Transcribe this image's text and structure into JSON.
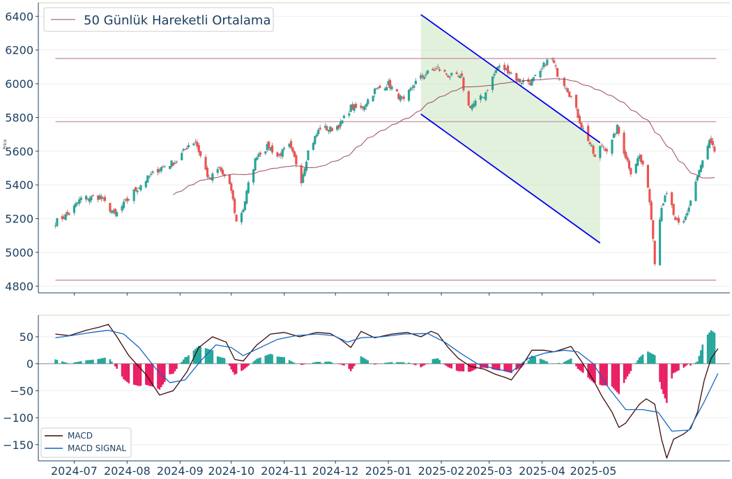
{
  "chart_data": [
    {
      "type": "candlestick",
      "ylabel": "Price",
      "ylim": [
        4760,
        6480
      ],
      "yticks": [
        4800,
        5000,
        5200,
        5400,
        5600,
        5800,
        6000,
        6200,
        6400
      ],
      "legend": {
        "label": "50 Günlük Hareketli Ortalama",
        "placement": "top-left"
      },
      "horizontal_levels": [
        6150,
        5775,
        4835
      ],
      "trend_channel": {
        "upper": [
          [
            "2025-01-20",
            6410
          ],
          [
            "2025-05-05",
            5650
          ]
        ],
        "lower": [
          [
            "2025-01-20",
            5820
          ],
          [
            "2025-05-05",
            5055
          ]
        ]
      },
      "colors": {
        "up": "#26a69a",
        "down": "#ef5350",
        "ma": "#9b4a5a",
        "channel": "#0000ee",
        "channel_fill": "#cfe8c5",
        "levels": "#c9a4ac"
      },
      "close_anchors": [
        [
          "2024-06-20",
          5180
        ],
        [
          "2024-06-28",
          5230
        ],
        [
          "2024-07-05",
          5320
        ],
        [
          "2024-07-16",
          5330
        ],
        [
          "2024-07-25",
          5220
        ],
        [
          "2024-08-05",
          5360
        ],
        [
          "2024-08-12",
          5430
        ],
        [
          "2024-08-20",
          5500
        ],
        [
          "2024-08-30",
          5540
        ],
        [
          "2024-09-06",
          5640
        ],
        [
          "2024-09-10",
          5660
        ],
        [
          "2024-09-13",
          5570
        ],
        [
          "2024-09-18",
          5430
        ],
        [
          "2024-09-24",
          5500
        ],
        [
          "2024-10-01",
          5370
        ],
        [
          "2024-10-04",
          5180
        ],
        [
          "2024-10-08",
          5260
        ],
        [
          "2024-10-11",
          5400
        ],
        [
          "2024-10-16",
          5580
        ],
        [
          "2024-10-23",
          5630
        ],
        [
          "2024-10-28",
          5570
        ],
        [
          "2024-11-04",
          5630
        ],
        [
          "2024-11-08",
          5530
        ],
        [
          "2024-11-11",
          5430
        ],
        [
          "2024-11-15",
          5600
        ],
        [
          "2024-11-22",
          5740
        ],
        [
          "2024-11-28",
          5730
        ],
        [
          "2024-12-04",
          5760
        ],
        [
          "2024-12-10",
          5860
        ],
        [
          "2024-12-16",
          5850
        ],
        [
          "2024-12-24",
          5960
        ],
        [
          "2025-01-01",
          6000
        ],
        [
          "2025-01-10",
          5890
        ],
        [
          "2025-01-16",
          6000
        ],
        [
          "2025-01-23",
          6060
        ],
        [
          "2025-01-30",
          6090
        ],
        [
          "2025-02-05",
          6050
        ],
        [
          "2025-02-13",
          6030
        ],
        [
          "2025-02-16",
          5860
        ],
        [
          "2025-02-20",
          5880
        ],
        [
          "2025-02-26",
          5930
        ],
        [
          "2025-03-06",
          6100
        ],
        [
          "2025-03-12",
          6080
        ],
        [
          "2025-03-18",
          6020
        ],
        [
          "2025-03-25",
          6010
        ],
        [
          "2025-03-31",
          6060
        ],
        [
          "2025-04-03",
          6130
        ],
        [
          "2025-04-07",
          6140
        ],
        [
          "2025-04-10",
          6060
        ],
        [
          "2025-04-15",
          5990
        ],
        [
          "2025-04-20",
          5870
        ],
        [
          "2025-04-24",
          5750
        ],
        [
          "2025-04-28",
          5670
        ],
        [
          "2025-05-02",
          5560
        ],
        [
          "2025-05-06",
          5640
        ],
        [
          "2025-05-10",
          5600
        ],
        [
          "2025-05-15",
          5740
        ],
        [
          "2025-05-19",
          5600
        ],
        [
          "2025-05-23",
          5480
        ],
        [
          "2025-05-28",
          5570
        ],
        [
          "2025-06-02",
          5400
        ],
        [
          "2025-06-05",
          5100
        ],
        [
          "2025-06-06",
          4950
        ],
        [
          "2025-06-10",
          5280
        ],
        [
          "2025-06-14",
          5360
        ],
        [
          "2025-06-18",
          5180
        ],
        [
          "2025-06-22",
          5150
        ],
        [
          "2025-06-26",
          5270
        ],
        [
          "2025-06-30",
          5420
        ],
        [
          "2025-07-04",
          5540
        ],
        [
          "2025-07-08",
          5650
        ],
        [
          "2025-07-11",
          5600
        ]
      ]
    },
    {
      "type": "line",
      "ylim": [
        -180,
        90
      ],
      "yticks": [
        50,
        0,
        -50,
        -100,
        -150
      ],
      "xlim": [
        "2024-06-10",
        "2025-07-20"
      ],
      "xticks": [
        "2024-07",
        "2024-08",
        "2024-09",
        "2024-10",
        "2024-11",
        "2024-12",
        "2025-01",
        "2025-02",
        "2025-03",
        "2025-04",
        "2025-05"
      ],
      "legend_placement": "bottom-left",
      "colors": {
        "hist_pos": "#26a69a",
        "hist_neg": "#e91e63"
      },
      "series": [
        {
          "name": "MACD",
          "color": "#3a0a0a",
          "points": [
            [
              "2024-06-20",
              55
            ],
            [
              "2024-06-28",
              52
            ],
            [
              "2024-07-08",
              62
            ],
            [
              "2024-07-16",
              68
            ],
            [
              "2024-07-21",
              73
            ],
            [
              "2024-07-26",
              50
            ],
            [
              "2024-08-02",
              15
            ],
            [
              "2024-08-12",
              -20
            ],
            [
              "2024-08-20",
              -58
            ],
            [
              "2024-08-28",
              -50
            ],
            [
              "2024-09-05",
              -15
            ],
            [
              "2024-09-12",
              30
            ],
            [
              "2024-09-20",
              50
            ],
            [
              "2024-09-28",
              40
            ],
            [
              "2024-10-03",
              8
            ],
            [
              "2024-10-08",
              5
            ],
            [
              "2024-10-16",
              35
            ],
            [
              "2024-10-24",
              55
            ],
            [
              "2024-11-01",
              58
            ],
            [
              "2024-11-10",
              50
            ],
            [
              "2024-11-20",
              58
            ],
            [
              "2024-11-28",
              56
            ],
            [
              "2024-12-04",
              45
            ],
            [
              "2024-12-10",
              30
            ],
            [
              "2024-12-16",
              60
            ],
            [
              "2024-12-24",
              48
            ],
            [
              "2025-01-03",
              55
            ],
            [
              "2025-01-12",
              58
            ],
            [
              "2025-01-20",
              50
            ],
            [
              "2025-01-26",
              60
            ],
            [
              "2025-01-30",
              55
            ],
            [
              "2025-02-05",
              30
            ],
            [
              "2025-02-11",
              10
            ],
            [
              "2025-02-18",
              -5
            ],
            [
              "2025-02-26",
              -10
            ],
            [
              "2025-03-05",
              -20
            ],
            [
              "2025-03-10",
              -25
            ],
            [
              "2025-03-14",
              -30
            ],
            [
              "2025-03-20",
              -5
            ],
            [
              "2025-03-26",
              25
            ],
            [
              "2025-04-02",
              25
            ],
            [
              "2025-04-08",
              22
            ],
            [
              "2025-04-14",
              28
            ],
            [
              "2025-04-18",
              32
            ],
            [
              "2025-04-25",
              0
            ],
            [
              "2025-05-01",
              -30
            ],
            [
              "2025-05-06",
              -60
            ],
            [
              "2025-05-12",
              -90
            ],
            [
              "2025-05-16",
              -118
            ],
            [
              "2025-05-20",
              -110
            ],
            [
              "2025-05-28",
              -75
            ],
            [
              "2025-06-01",
              -65
            ],
            [
              "2025-06-06",
              -75
            ],
            [
              "2025-06-10",
              -140
            ],
            [
              "2025-06-13",
              -175
            ],
            [
              "2025-06-17",
              -140
            ],
            [
              "2025-06-23",
              -130
            ],
            [
              "2025-06-27",
              -120
            ],
            [
              "2025-07-01",
              -90
            ],
            [
              "2025-07-05",
              -30
            ],
            [
              "2025-07-09",
              10
            ],
            [
              "2025-07-13",
              28
            ]
          ]
        },
        {
          "name": "MACD SIGNAL",
          "color": "#1565c0",
          "points": [
            [
              "2024-06-20",
              48
            ],
            [
              "2024-07-01",
              53
            ],
            [
              "2024-07-11",
              58
            ],
            [
              "2024-07-21",
              62
            ],
            [
              "2024-07-30",
              55
            ],
            [
              "2024-08-08",
              30
            ],
            [
              "2024-08-18",
              -10
            ],
            [
              "2024-08-26",
              -35
            ],
            [
              "2024-09-04",
              -30
            ],
            [
              "2024-09-13",
              5
            ],
            [
              "2024-09-22",
              35
            ],
            [
              "2024-10-01",
              30
            ],
            [
              "2024-10-08",
              15
            ],
            [
              "2024-10-18",
              30
            ],
            [
              "2024-10-28",
              45
            ],
            [
              "2024-11-08",
              52
            ],
            [
              "2024-11-20",
              55
            ],
            [
              "2024-11-30",
              52
            ],
            [
              "2024-12-08",
              40
            ],
            [
              "2024-12-16",
              48
            ],
            [
              "2024-12-28",
              50
            ],
            [
              "2025-01-10",
              55
            ],
            [
              "2025-01-24",
              56
            ],
            [
              "2025-02-03",
              40
            ],
            [
              "2025-02-12",
              20
            ],
            [
              "2025-02-22",
              0
            ],
            [
              "2025-03-05",
              -10
            ],
            [
              "2025-03-14",
              -15
            ],
            [
              "2025-03-24",
              10
            ],
            [
              "2025-04-03",
              20
            ],
            [
              "2025-04-14",
              25
            ],
            [
              "2025-04-22",
              22
            ],
            [
              "2025-05-01",
              0
            ],
            [
              "2025-05-10",
              -45
            ],
            [
              "2025-05-20",
              -85
            ],
            [
              "2025-05-30",
              -85
            ],
            [
              "2025-06-08",
              -90
            ],
            [
              "2025-06-16",
              -125
            ],
            [
              "2025-06-26",
              -123
            ],
            [
              "2025-07-05",
              -70
            ],
            [
              "2025-07-13",
              -18
            ]
          ]
        }
      ]
    }
  ]
}
